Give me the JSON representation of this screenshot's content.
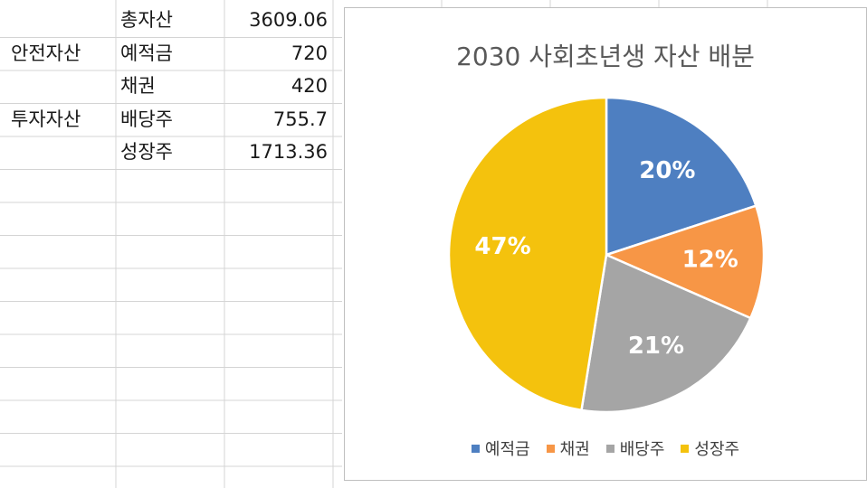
{
  "sheet": {
    "rows": [
      {
        "group": "",
        "item": "총자산",
        "value": "3609.06"
      },
      {
        "group": "안전자산",
        "item": "예적금",
        "value": "720"
      },
      {
        "group": "",
        "item": "채권",
        "value": "420"
      },
      {
        "group": "투자자산",
        "item": "배당주",
        "value": "755.7"
      },
      {
        "group": "",
        "item": "성장주",
        "value": "1713.36"
      }
    ]
  },
  "chart_data": {
    "type": "pie",
    "title": "2030 사회초년생 자산 배분",
    "categories": [
      "예적금",
      "채권",
      "배당주",
      "성장주"
    ],
    "values": [
      720,
      420,
      755.7,
      1713.36
    ],
    "data_labels": [
      "20%",
      "12%",
      "21%",
      "47%"
    ],
    "colors": [
      "#4e7fc1",
      "#f79646",
      "#a5a5a5",
      "#f4c20d"
    ],
    "legend_position": "bottom"
  }
}
